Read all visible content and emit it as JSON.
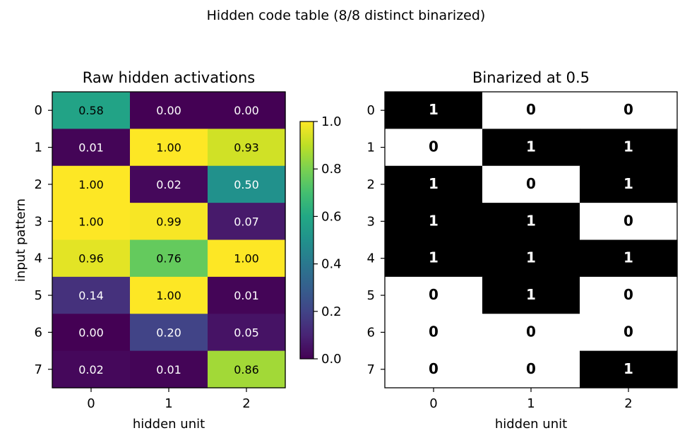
{
  "figure": {
    "suptitle": "Hidden code table  (8/8 distinct binarized)"
  },
  "chart_data": [
    {
      "type": "heatmap",
      "title": "Raw hidden activations",
      "xlabel": "hidden unit",
      "ylabel": "input pattern",
      "x_ticks": [
        "0",
        "1",
        "2"
      ],
      "y_ticks": [
        "0",
        "1",
        "2",
        "3",
        "4",
        "5",
        "6",
        "7"
      ],
      "values": [
        [
          0.58,
          0.0,
          0.0
        ],
        [
          0.01,
          1.0,
          0.93
        ],
        [
          1.0,
          0.02,
          0.5
        ],
        [
          1.0,
          0.99,
          0.07
        ],
        [
          0.96,
          0.76,
          1.0
        ],
        [
          0.14,
          1.0,
          0.01
        ],
        [
          0.0,
          0.2,
          0.05
        ],
        [
          0.02,
          0.01,
          0.86
        ]
      ],
      "cell_labels": [
        [
          "0.58",
          "0.00",
          "0.00"
        ],
        [
          "0.01",
          "1.00",
          "0.93"
        ],
        [
          "1.00",
          "0.02",
          "0.50"
        ],
        [
          "1.00",
          "0.99",
          "0.07"
        ],
        [
          "0.96",
          "0.76",
          "1.00"
        ],
        [
          "0.14",
          "1.00",
          "0.01"
        ],
        [
          "0.00",
          "0.20",
          "0.05"
        ],
        [
          "0.02",
          "0.01",
          "0.86"
        ]
      ],
      "colormap": "viridis",
      "colorbar": {
        "range": [
          0,
          1
        ],
        "ticks": [
          0.0,
          0.2,
          0.4,
          0.6,
          0.8,
          1.0
        ],
        "tick_labels": [
          "0.0",
          "0.2",
          "0.4",
          "0.6",
          "0.8",
          "1.0"
        ]
      }
    },
    {
      "type": "heatmap",
      "title": "Binarized at 0.5",
      "xlabel": "hidden unit",
      "ylabel": "",
      "x_ticks": [
        "0",
        "1",
        "2"
      ],
      "y_ticks": [
        "0",
        "1",
        "2",
        "3",
        "4",
        "5",
        "6",
        "7"
      ],
      "values": [
        [
          1,
          0,
          0
        ],
        [
          0,
          1,
          1
        ],
        [
          1,
          0,
          1
        ],
        [
          1,
          1,
          0
        ],
        [
          1,
          1,
          1
        ],
        [
          0,
          1,
          0
        ],
        [
          0,
          0,
          0
        ],
        [
          0,
          0,
          1
        ]
      ],
      "cell_labels": [
        [
          "1",
          "0",
          "0"
        ],
        [
          "0",
          "1",
          "1"
        ],
        [
          "1",
          "0",
          "1"
        ],
        [
          "1",
          "1",
          "0"
        ],
        [
          "1",
          "1",
          "1"
        ],
        [
          "0",
          "1",
          "0"
        ],
        [
          "0",
          "0",
          "0"
        ],
        [
          "0",
          "0",
          "1"
        ]
      ],
      "colormap": "binary",
      "colors": {
        "one": "#000000",
        "zero": "#ffffff"
      }
    }
  ]
}
